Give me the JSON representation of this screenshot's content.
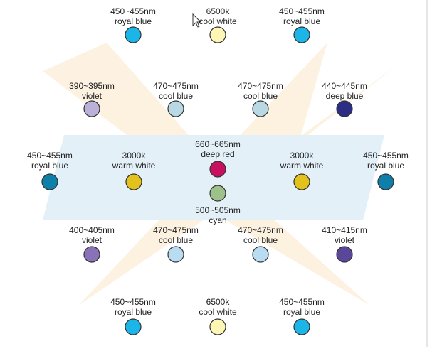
{
  "nodes": [
    {
      "wavelength": "450~455nm",
      "name": "royal blue",
      "color": "#1bb5e8"
    },
    {
      "wavelength": "6500k",
      "name": "cool white",
      "color": "#fdf6b5"
    },
    {
      "wavelength": "450~455nm",
      "name": "royal blue",
      "color": "#1bb5e8"
    },
    {
      "wavelength": "390~395nm",
      "name": "violet",
      "color": "#bbb0d8"
    },
    {
      "wavelength": "470~475nm",
      "name": "cool blue",
      "color": "#b8d9e3"
    },
    {
      "wavelength": "470~475nm",
      "name": "cool blue",
      "color": "#b8d9e3"
    },
    {
      "wavelength": "440~445nm",
      "name": "deep blue",
      "color": "#2b2e84"
    },
    {
      "wavelength": "450~455nm",
      "name": "royal blue",
      "color": "#0e7fa8"
    },
    {
      "wavelength": "3000k",
      "name": "warm white",
      "color": "#e4c21e"
    },
    {
      "wavelength": "660~665nm",
      "name": "deep red",
      "color": "#c8105f"
    },
    {
      "wavelength": "500~505nm",
      "name": "cyan",
      "color": "#9cc28a"
    },
    {
      "wavelength": "3000k",
      "name": "warm white",
      "color": "#e4c21e"
    },
    {
      "wavelength": "450~455nm",
      "name": "royal blue",
      "color": "#0e7fa8"
    },
    {
      "wavelength": "400~405nm",
      "name": "violet",
      "color": "#8a72b8"
    },
    {
      "wavelength": "470~475nm",
      "name": "cool blue",
      "color": "#b9dcf2"
    },
    {
      "wavelength": "470~475nm",
      "name": "cool blue",
      "color": "#b9dcf2"
    },
    {
      "wavelength": "410~415nm",
      "name": "violet",
      "color": "#5a479a"
    },
    {
      "wavelength": "450~455nm",
      "name": "royal blue",
      "color": "#1bb5e8"
    },
    {
      "wavelength": "6500k",
      "name": "cool white",
      "color": "#fdf6b5"
    },
    {
      "wavelength": "450~455nm",
      "name": "royal blue",
      "color": "#1bb5e8"
    }
  ]
}
